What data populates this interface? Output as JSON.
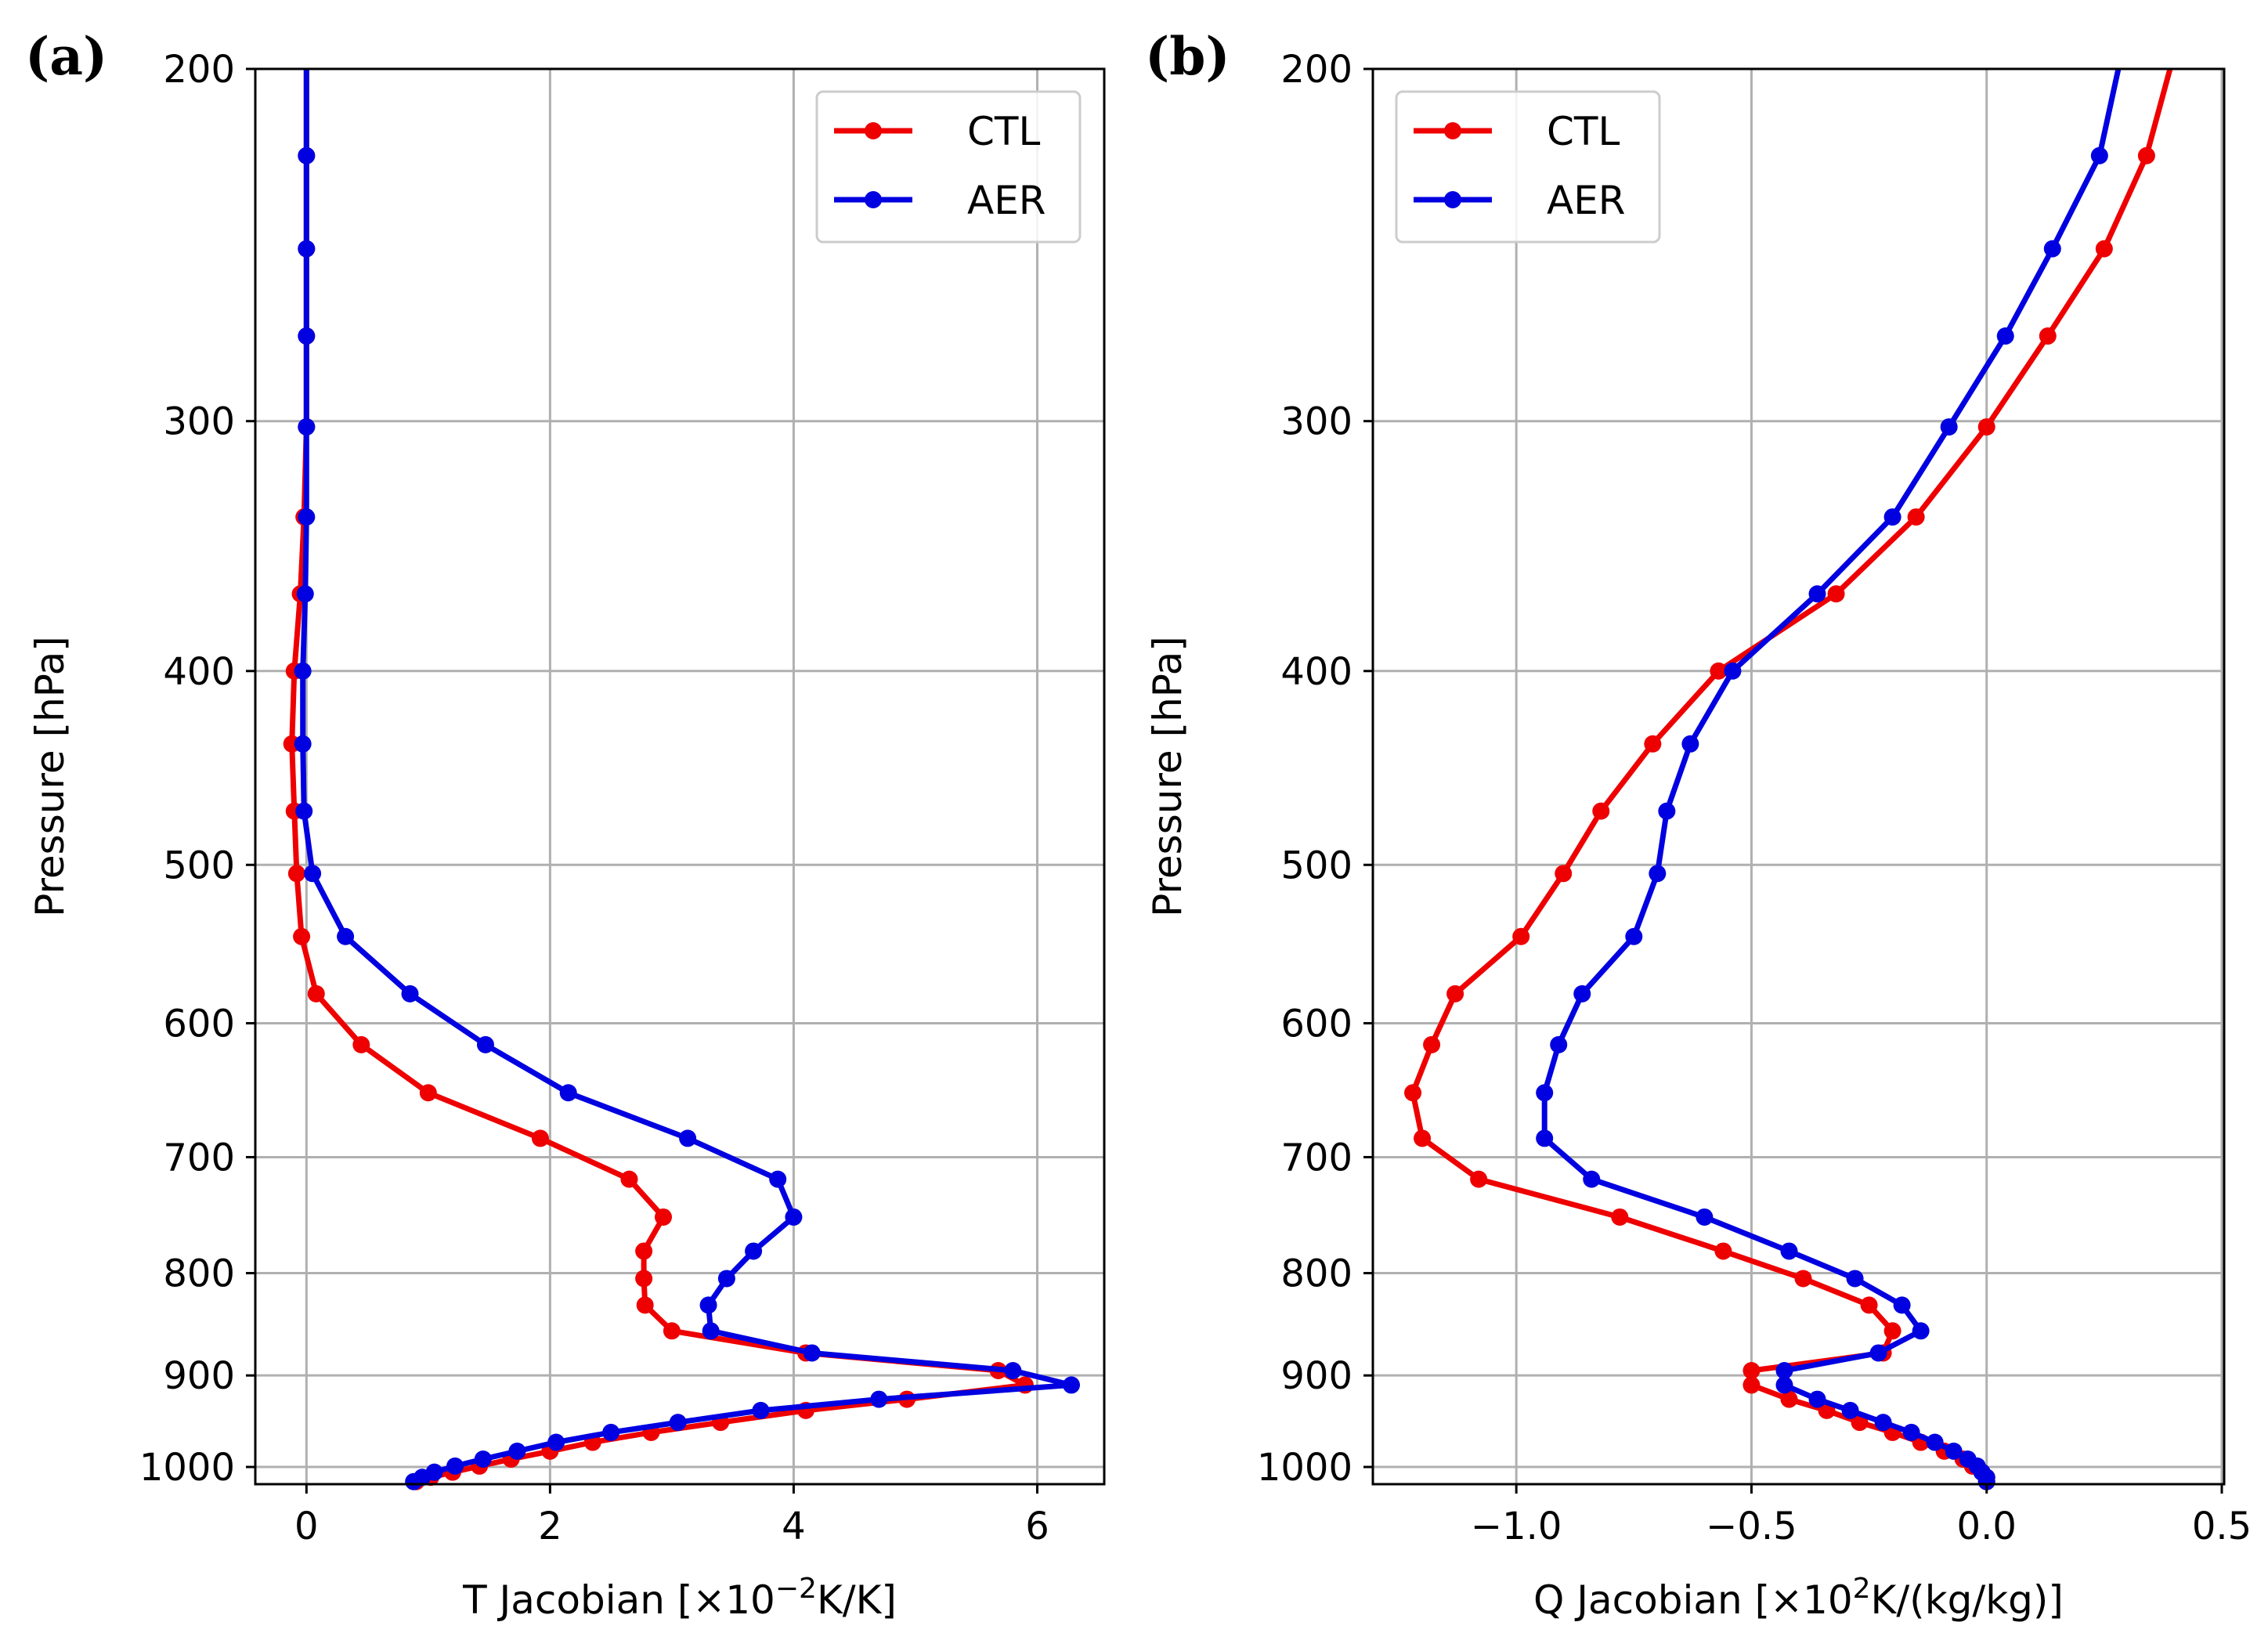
{
  "colors": {
    "CTL": "#ee0000",
    "AER": "#0000e0",
    "grid": "#b0b0b0",
    "axes": "#000000"
  },
  "chart_data": [
    {
      "panel_label": "(a)",
      "type": "line",
      "xlabel": "T Jacobian [×10",
      "xlabel_exp": "−2",
      "xlabel_unit": "K/K]",
      "ylabel": "Pressure [hPa]",
      "xlim": [
        -0.42,
        6.55
      ],
      "ylim": [
        1020,
        200
      ],
      "yscale": "log",
      "xticks": [
        0,
        2,
        4,
        6
      ],
      "xtick_labels": [
        "0",
        "2",
        "4",
        "6"
      ],
      "yticks": [
        200,
        300,
        400,
        500,
        600,
        700,
        800,
        900,
        1000
      ],
      "ytick_labels": [
        "200",
        "300",
        "400",
        "500",
        "600",
        "700",
        "800",
        "900",
        "1000"
      ],
      "grid": true,
      "legend_position": "top-right",
      "series": [
        {
          "name": "CTL",
          "x": [
            0.0,
            0.0,
            0.0,
            0.0,
            0.0,
            -0.02,
            -0.05,
            -0.1,
            -0.12,
            -0.1,
            -0.08,
            -0.04,
            0.08,
            0.45,
            1.0,
            1.92,
            2.65,
            2.93,
            2.77,
            2.77,
            2.78,
            3.0,
            4.1,
            5.68,
            5.9,
            4.93,
            4.1,
            3.4,
            2.83,
            2.35,
            2.0,
            1.68,
            1.42,
            1.2,
            1.02,
            0.9
          ],
          "y": [
            200,
            221,
            246,
            272,
            302,
            335,
            366,
            400,
            435,
            470,
            505,
            543,
            580,
            615,
            650,
            685,
            718,
            750,
            780,
            805,
            830,
            855,
            877,
            895,
            910,
            925,
            937,
            950,
            961,
            972,
            982,
            991,
            999,
            1006,
            1012,
            1017
          ]
        },
        {
          "name": "AER",
          "x": [
            0.0,
            0.0,
            0.0,
            0.0,
            0.0,
            0.0,
            -0.01,
            -0.03,
            -0.03,
            -0.02,
            0.05,
            0.32,
            0.85,
            1.47,
            2.15,
            3.13,
            3.87,
            4.0,
            3.67,
            3.45,
            3.3,
            3.32,
            4.15,
            5.8,
            6.28,
            4.7,
            3.73,
            3.05,
            2.5,
            2.05,
            1.73,
            1.45,
            1.22,
            1.05,
            0.95,
            0.88
          ],
          "y": [
            200,
            221,
            246,
            272,
            302,
            335,
            366,
            400,
            435,
            470,
            505,
            543,
            580,
            615,
            650,
            685,
            718,
            750,
            780,
            805,
            830,
            855,
            877,
            895,
            910,
            925,
            937,
            950,
            961,
            972,
            982,
            991,
            999,
            1006,
            1012,
            1017
          ]
        }
      ]
    },
    {
      "panel_label": "(b)",
      "type": "line",
      "xlabel": "Q Jacobian [×10",
      "xlabel_exp": "2",
      "xlabel_unit": "K/(kg/kg)]",
      "ylabel": "Pressure [hPa]",
      "xlim": [
        -1.305,
        0.505
      ],
      "ylim": [
        1020,
        200
      ],
      "yscale": "log",
      "xticks": [
        -1.0,
        -0.5,
        0.0,
        0.5
      ],
      "xtick_labels": [
        "−1.0",
        "−0.5",
        "0.0",
        "0.5"
      ],
      "yticks": [
        200,
        300,
        400,
        500,
        600,
        700,
        800,
        900,
        1000
      ],
      "ytick_labels": [
        "200",
        "300",
        "400",
        "500",
        "600",
        "700",
        "800",
        "900",
        "1000"
      ],
      "grid": true,
      "legend_position": "top-left",
      "series": [
        {
          "name": "CTL",
          "x": [
            0.39,
            0.34,
            0.25,
            0.13,
            0.0,
            -0.15,
            -0.32,
            -0.57,
            -0.71,
            -0.82,
            -0.9,
            -0.99,
            -1.13,
            -1.18,
            -1.22,
            -1.2,
            -1.08,
            -0.78,
            -0.56,
            -0.39,
            -0.25,
            -0.2,
            -0.22,
            -0.5,
            -0.5,
            -0.42,
            -0.34,
            -0.27,
            -0.2,
            -0.14,
            -0.09,
            -0.05,
            -0.03,
            -0.01,
            0.0,
            0.0
          ],
          "y": [
            200,
            221,
            246,
            272,
            302,
            335,
            366,
            400,
            435,
            470,
            505,
            543,
            580,
            615,
            650,
            685,
            718,
            750,
            780,
            805,
            830,
            855,
            877,
            895,
            910,
            925,
            937,
            950,
            961,
            972,
            982,
            991,
            999,
            1006,
            1012,
            1017
          ]
        },
        {
          "name": "AER",
          "x": [
            0.28,
            0.24,
            0.14,
            0.04,
            -0.08,
            -0.2,
            -0.36,
            -0.54,
            -0.63,
            -0.68,
            -0.7,
            -0.75,
            -0.86,
            -0.91,
            -0.94,
            -0.94,
            -0.84,
            -0.6,
            -0.42,
            -0.28,
            -0.18,
            -0.14,
            -0.23,
            -0.43,
            -0.43,
            -0.36,
            -0.29,
            -0.22,
            -0.16,
            -0.11,
            -0.07,
            -0.04,
            -0.02,
            -0.01,
            0.0,
            0.0
          ],
          "y": [
            200,
            221,
            246,
            272,
            302,
            335,
            366,
            400,
            435,
            470,
            505,
            543,
            580,
            615,
            650,
            685,
            718,
            750,
            780,
            805,
            830,
            855,
            877,
            895,
            910,
            925,
            937,
            950,
            961,
            972,
            982,
            991,
            999,
            1006,
            1012,
            1017
          ]
        }
      ]
    }
  ]
}
